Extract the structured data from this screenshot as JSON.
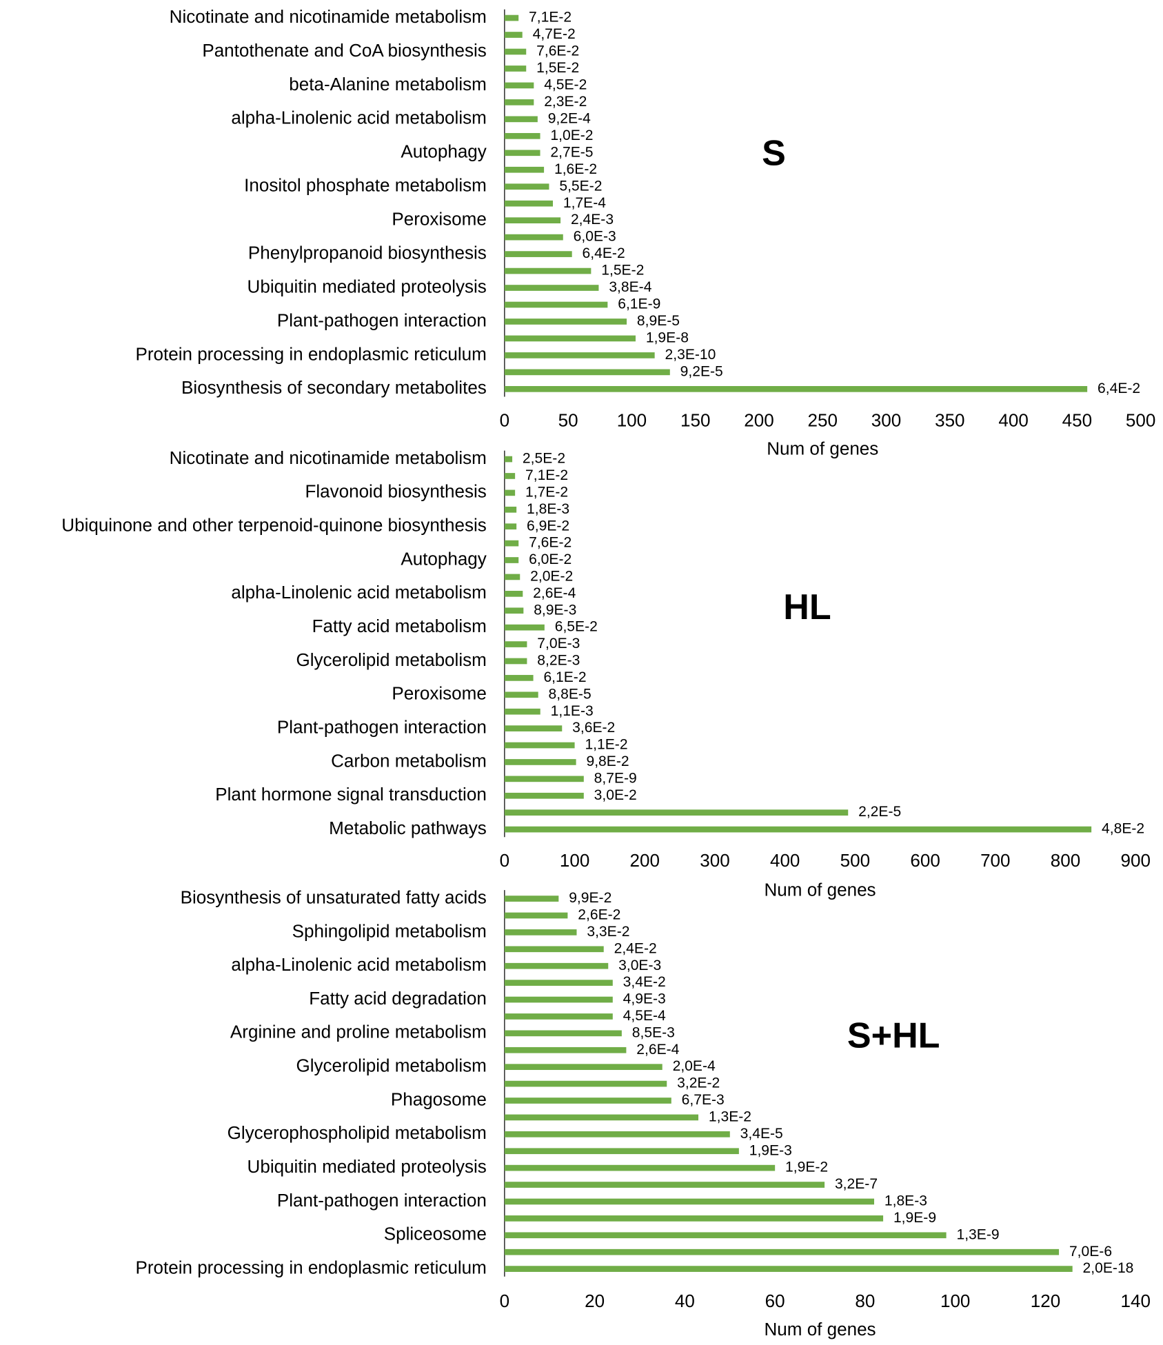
{
  "chart_data": [
    {
      "type": "bar",
      "orientation": "horizontal",
      "annotation": "S",
      "x_label": "Num of genes",
      "color": "#70ad47",
      "categories": [
        "Nicotinate and nicotinamide metabolism",
        null,
        "Pantothenate and CoA biosynthesis",
        null,
        "beta-Alanine metabolism",
        null,
        "alpha-Linolenic acid metabolism",
        null,
        "Autophagy",
        null,
        "Inositol phosphate metabolism",
        null,
        "Peroxisome",
        null,
        "Phenylpropanoid biosynthesis",
        null,
        "Ubiquitin mediated proteolysis",
        null,
        "Plant-pathogen interaction",
        null,
        "Protein processing in endoplasmic reticulum",
        null,
        "Biosynthesis of secondary metabolites"
      ],
      "values": [
        11,
        14,
        17,
        17,
        23,
        23,
        26,
        28,
        28,
        31,
        35,
        38,
        44,
        46,
        53,
        68,
        74,
        81,
        96,
        103,
        118,
        130,
        458
      ],
      "p_values": [
        "7,1E-2",
        "4,7E-2",
        "7,6E-2",
        "1,5E-2",
        "4,5E-2",
        "2,3E-2",
        "9,2E-4",
        "1,0E-2",
        "2,7E-5",
        "1,6E-2",
        "5,5E-2",
        "1,7E-4",
        "2,4E-3",
        "6,0E-3",
        "6,4E-2",
        "1,5E-2",
        "3,8E-4",
        "6,1E-9",
        "8,9E-5",
        "1,9E-8",
        "2,3E-10",
        "9,2E-5",
        "6,4E-2"
      ],
      "xlim": [
        0,
        500
      ],
      "xticks": [
        0,
        50,
        100,
        150,
        200,
        250,
        300,
        350,
        400,
        450,
        500
      ]
    },
    {
      "type": "bar",
      "orientation": "horizontal",
      "annotation": "HL",
      "x_label": "Num of genes",
      "color": "#70ad47",
      "categories": [
        "Nicotinate and nicotinamide metabolism",
        null,
        "Flavonoid biosynthesis",
        null,
        "Ubiquinone and other terpenoid-quinone biosynthesis",
        null,
        "Autophagy",
        null,
        "alpha-Linolenic acid metabolism",
        null,
        "Fatty acid metabolism",
        null,
        "Glycerolipid metabolism",
        null,
        "Peroxisome",
        null,
        "Plant-pathogen interaction",
        null,
        "Carbon metabolism",
        null,
        "Plant hormone signal transduction",
        null,
        "Metabolic pathways"
      ],
      "values": [
        11,
        15,
        15,
        17,
        17,
        20,
        20,
        22,
        26,
        27,
        57,
        32,
        32,
        41,
        48,
        51,
        82,
        100,
        102,
        113,
        113,
        490,
        837
      ],
      "p_values": [
        "2,5E-2",
        "7,1E-2",
        "1,7E-2",
        "1,8E-3",
        "6,9E-2",
        "7,6E-2",
        "6,0E-2",
        "2,0E-2",
        "2,6E-4",
        "8,9E-3",
        "6,5E-2",
        "7,0E-3",
        "8,2E-3",
        "6,1E-2",
        "8,8E-5",
        "1,1E-3",
        "3,6E-2",
        "1,1E-2",
        "9,8E-2",
        "8,7E-9",
        "3,0E-2",
        "2,2E-5",
        "4,8E-2"
      ],
      "xlim": [
        0,
        900
      ],
      "xticks": [
        0,
        100,
        200,
        300,
        400,
        500,
        600,
        700,
        800,
        900
      ]
    },
    {
      "type": "bar",
      "orientation": "horizontal",
      "annotation": "S+HL",
      "x_label": "Num of genes",
      "color": "#70ad47",
      "categories": [
        "Biosynthesis of unsaturated fatty acids",
        null,
        "Sphingolipid metabolism",
        null,
        "alpha-Linolenic acid metabolism",
        null,
        "Fatty acid degradation",
        null,
        "Arginine and proline metabolism",
        null,
        "Glycerolipid metabolism",
        null,
        "Phagosome",
        null,
        "Glycerophospholipid metabolism",
        null,
        "Ubiquitin mediated proteolysis",
        null,
        "Plant-pathogen interaction",
        null,
        "Spliceosome",
        null,
        "Protein processing in endoplasmic reticulum"
      ],
      "values": [
        12,
        14,
        16,
        22,
        23,
        24,
        24,
        24,
        26,
        27,
        35,
        36,
        37,
        43,
        50,
        52,
        60,
        71,
        82,
        84,
        98,
        123,
        126
      ],
      "p_values": [
        "9,9E-2",
        "2,6E-2",
        "3,3E-2",
        "2,4E-2",
        "3,0E-3",
        "3,4E-2",
        "4,9E-3",
        "4,5E-4",
        "8,5E-3",
        "2,6E-4",
        "2,0E-4",
        "3,2E-2",
        "6,7E-3",
        "1,3E-2",
        "3,4E-5",
        "1,9E-3",
        "1,9E-2",
        "3,2E-7",
        "1,8E-3",
        "1,9E-9",
        "1,3E-9",
        "7,0E-6",
        "2,0E-18"
      ],
      "xlim": [
        0,
        140
      ],
      "xticks": [
        0,
        20,
        40,
        60,
        80,
        100,
        120,
        140
      ]
    }
  ]
}
